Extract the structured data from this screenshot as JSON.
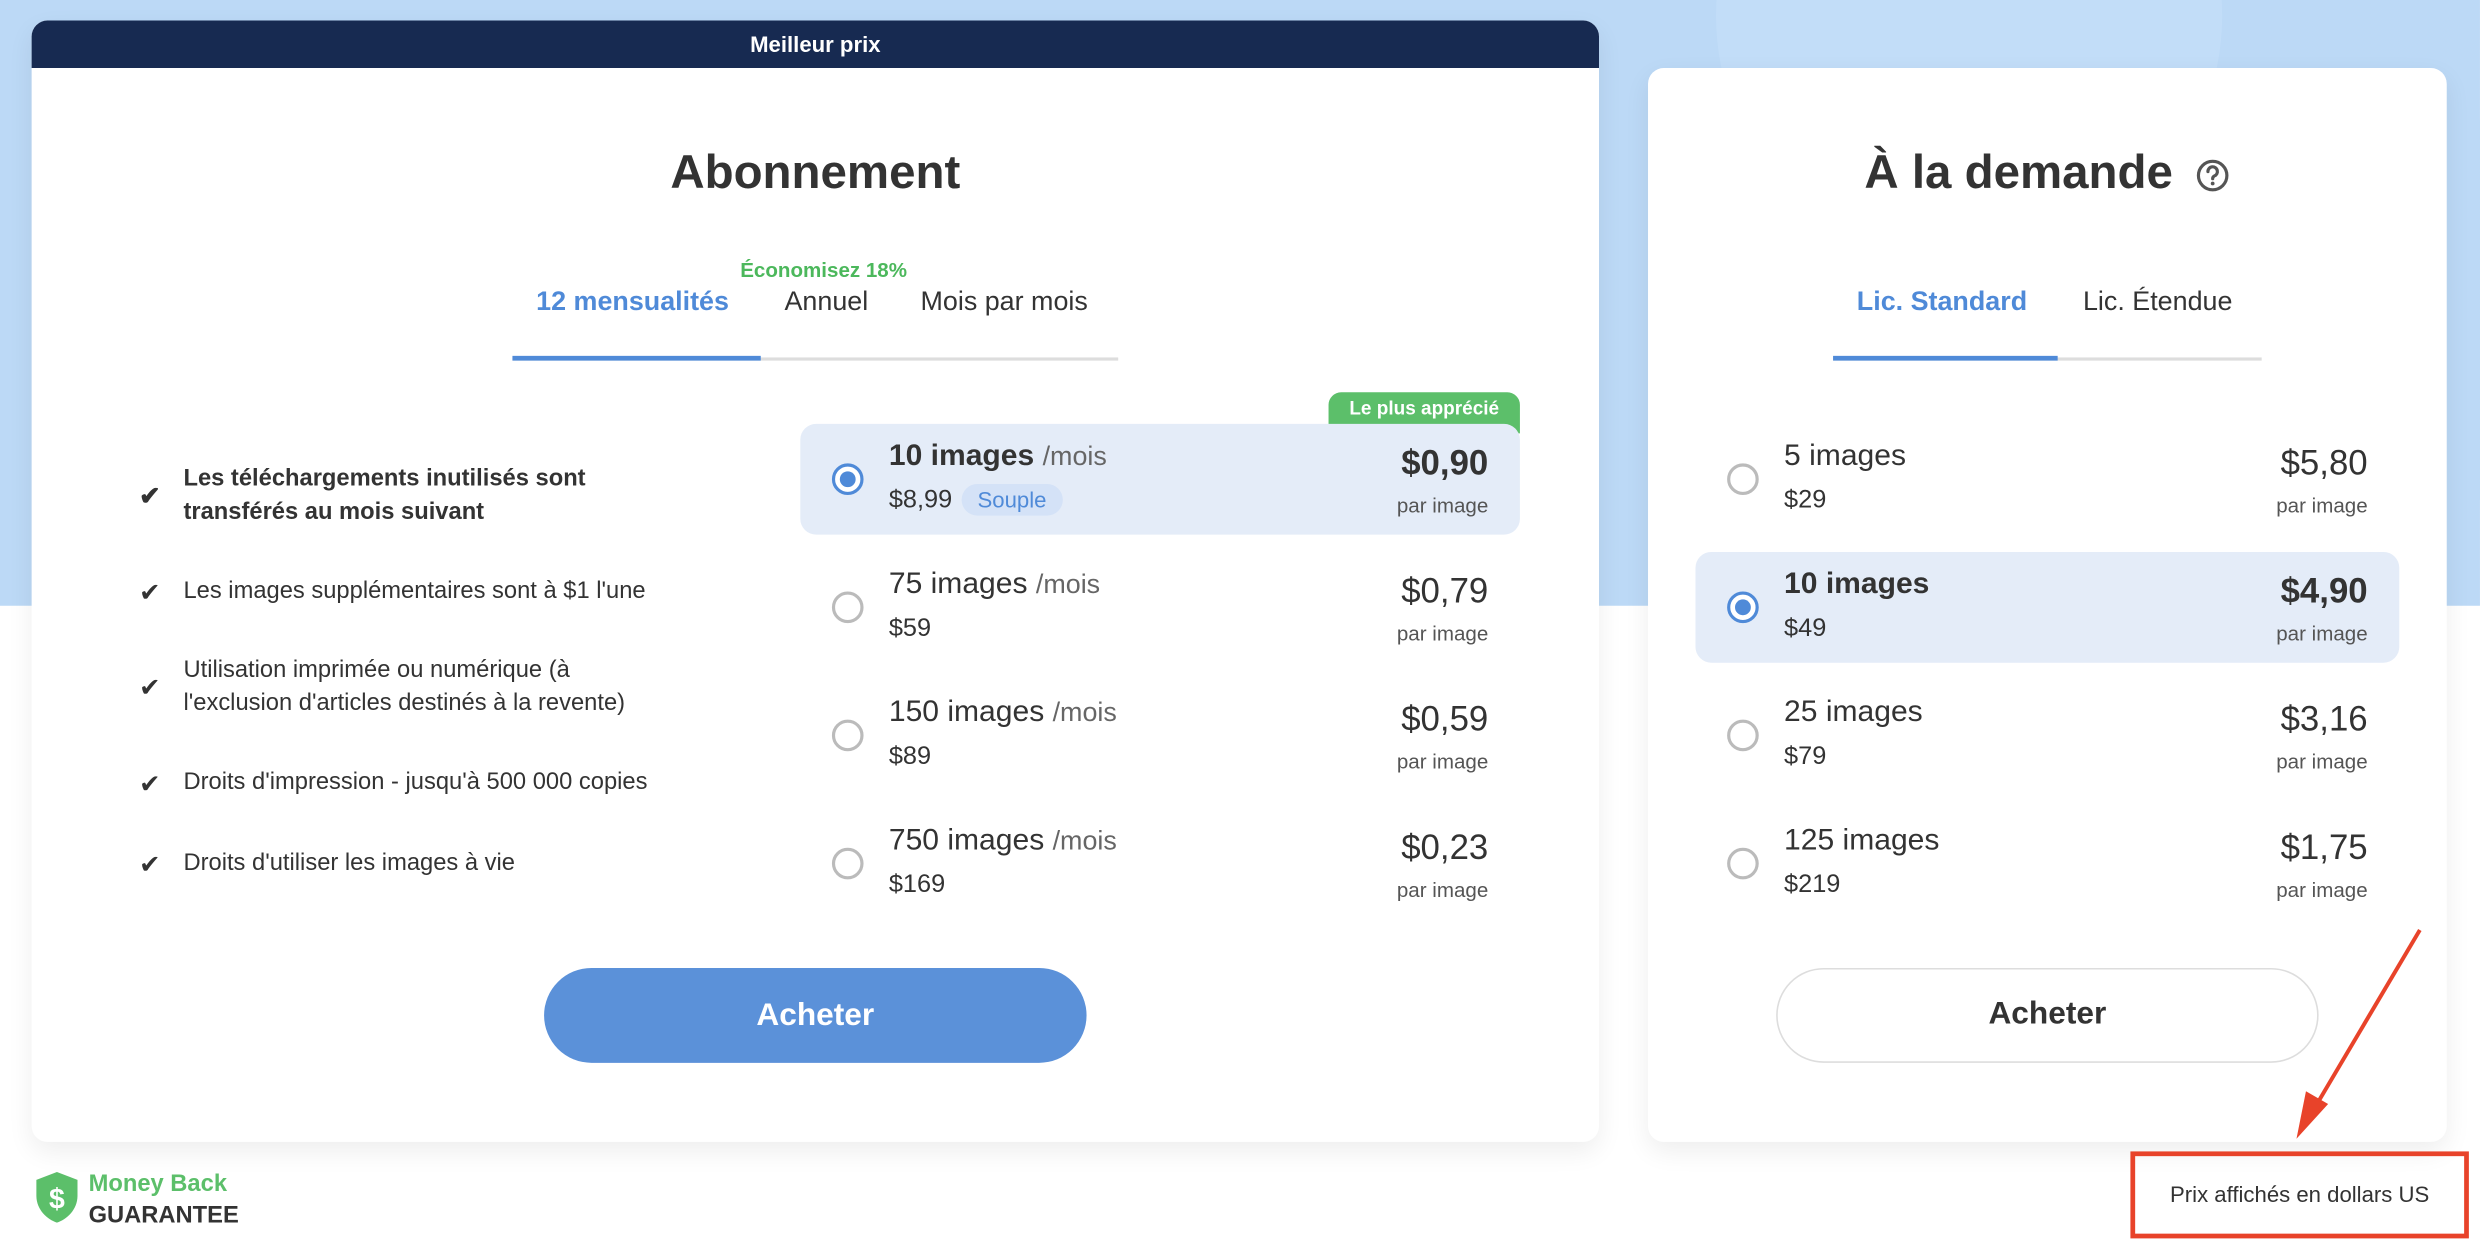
{
  "colors": {
    "accent": "#4f8ad8",
    "header": "#172a51",
    "green": "#5cbf6a",
    "annotation": "#e8432a"
  },
  "subscription": {
    "banner": "Meilleur prix",
    "title": "Abonnement",
    "savings_label": "Économisez 18%",
    "tabs": [
      {
        "label": "12 mensualités",
        "active": true
      },
      {
        "label": "Annuel",
        "active": false
      },
      {
        "label": "Mois par mois",
        "active": false
      }
    ],
    "features": [
      {
        "text": "Les téléchargements inutilisés sont transférés au mois suivant",
        "bold": true
      },
      {
        "text": "Les images supplémentaires sont à $1 l'une"
      },
      {
        "text": "Utilisation imprimée ou numérique (à l'exclusion d'articles destinés à la revente)"
      },
      {
        "text": "Droits d'impression - jusqu'à 500 000 copies"
      },
      {
        "text": "Droits d'utiliser les images à vie"
      }
    ],
    "popular_badge": "Le plus apprécié",
    "plans": [
      {
        "name": "10 images",
        "unit": "/mois",
        "total": "$8,99",
        "tag": "Souple",
        "price": "$0,90",
        "per": "par image",
        "selected": true
      },
      {
        "name": "75 images",
        "unit": "/mois",
        "total": "$59",
        "price": "$0,79",
        "per": "par image",
        "selected": false
      },
      {
        "name": "150 images",
        "unit": "/mois",
        "total": "$89",
        "price": "$0,59",
        "per": "par image",
        "selected": false
      },
      {
        "name": "750 images",
        "unit": "/mois",
        "total": "$169",
        "price": "$0,23",
        "per": "par image",
        "selected": false
      }
    ],
    "buy_label": "Acheter"
  },
  "on_demand": {
    "title": "À la demande",
    "help_icon": "question-circle-icon",
    "tabs": [
      {
        "label": "Lic. Standard",
        "active": true
      },
      {
        "label": "Lic. Étendue",
        "active": false
      }
    ],
    "plans": [
      {
        "name": "5 images",
        "total": "$29",
        "price": "$5,80",
        "per": "par image",
        "selected": false
      },
      {
        "name": "10 images",
        "total": "$49",
        "price": "$4,90",
        "per": "par image",
        "selected": true
      },
      {
        "name": "25 images",
        "total": "$79",
        "price": "$3,16",
        "per": "par image",
        "selected": false
      },
      {
        "name": "125 images",
        "total": "$219",
        "price": "$1,75",
        "per": "par image",
        "selected": false
      }
    ],
    "buy_label": "Acheter"
  },
  "guarantee": {
    "line1": "Money Back",
    "line2": "GUARANTEE",
    "icon": "dollar-shield-icon"
  },
  "currency_note": "Prix affichés en dollars US"
}
